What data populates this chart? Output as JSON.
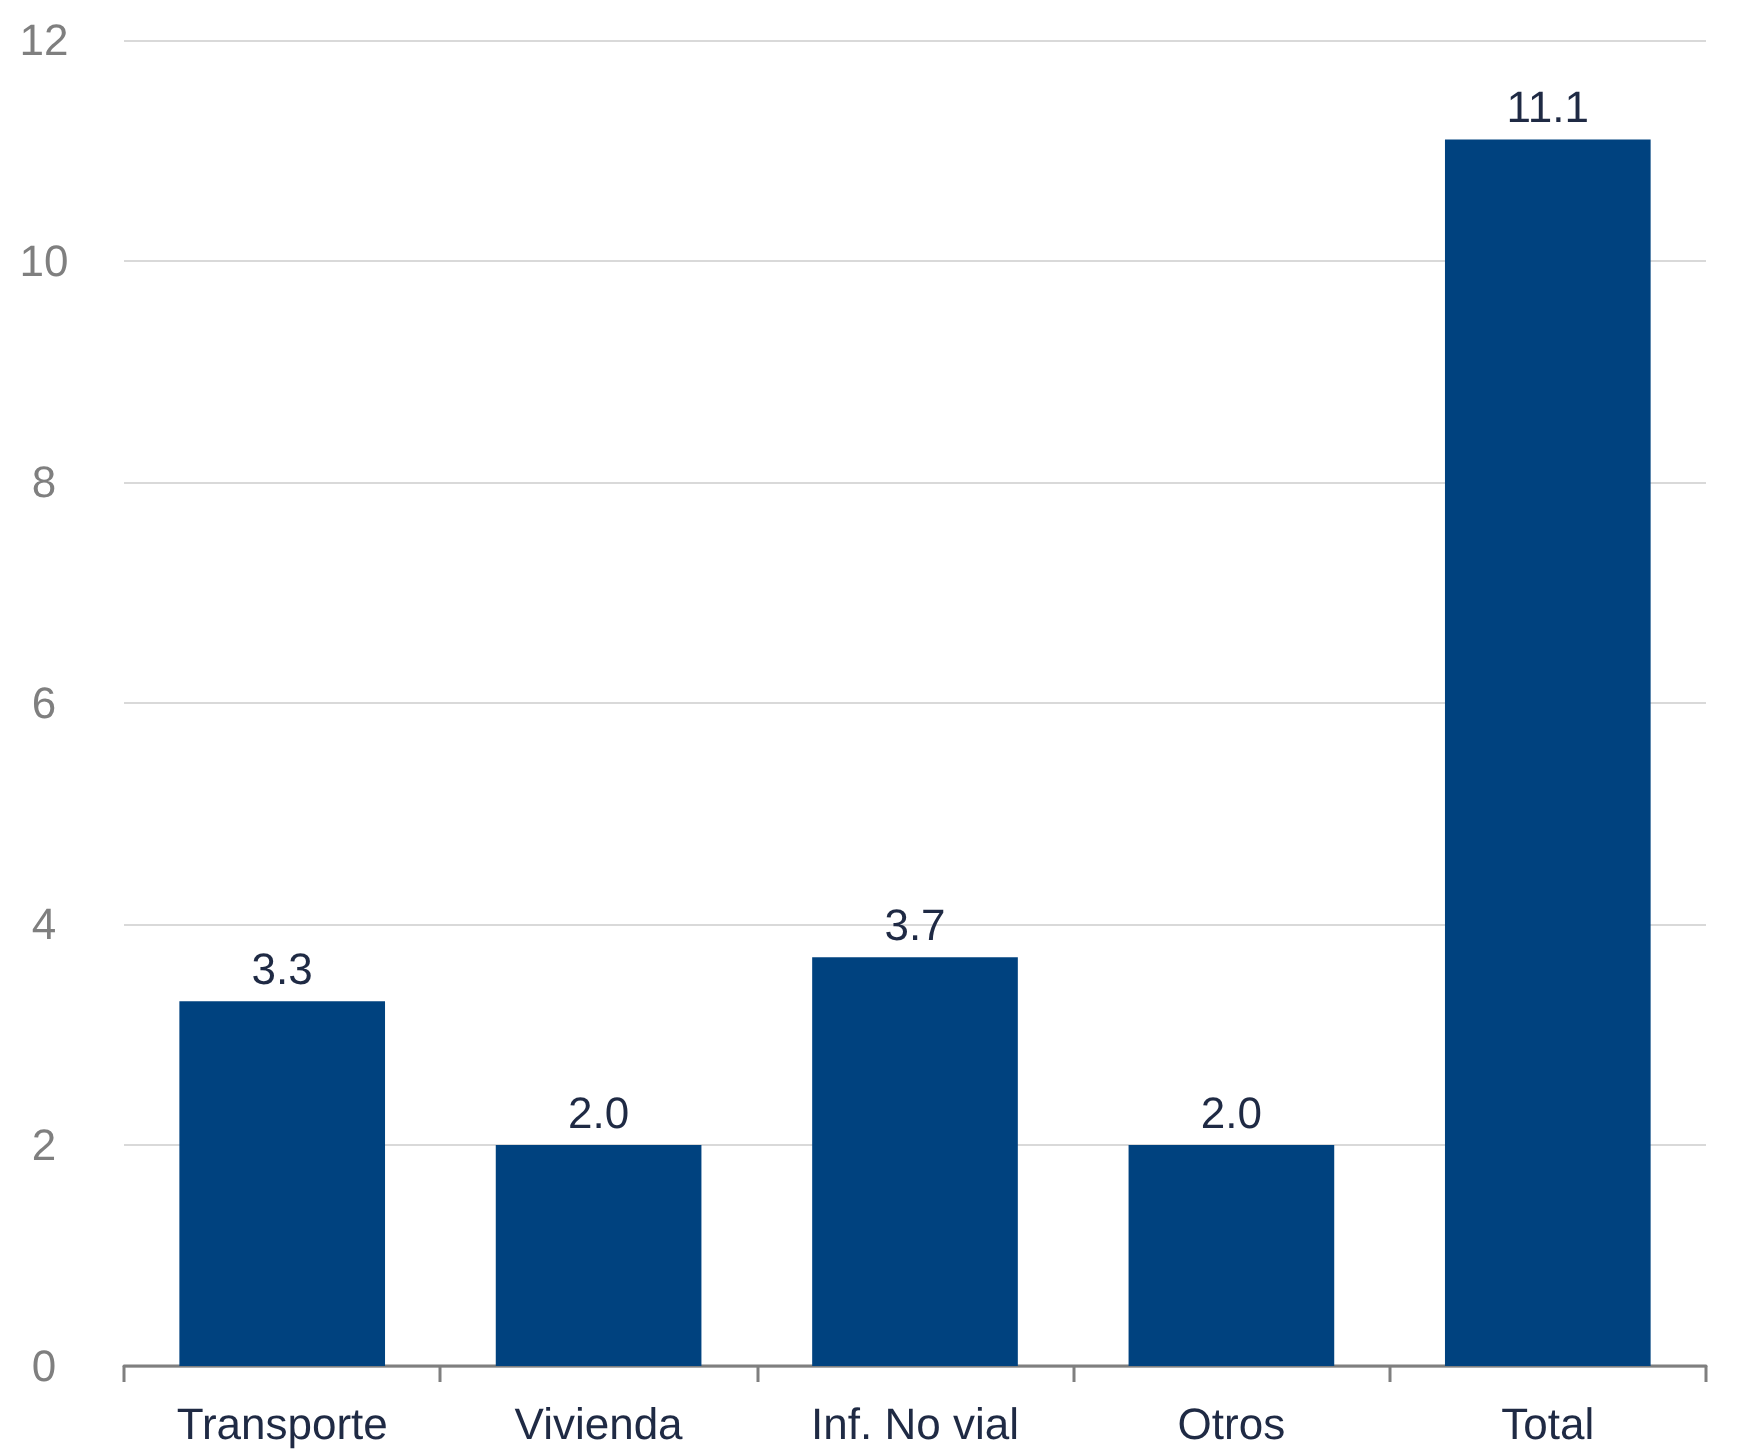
{
  "chart_data": {
    "type": "bar",
    "categories": [
      "Transporte",
      "Vivienda",
      "Inf. No vial",
      "Otros",
      "Total"
    ],
    "values": [
      3.3,
      2.0,
      3.7,
      2.0,
      11.1
    ],
    "value_labels": [
      "3.3",
      "2.0",
      "3.7",
      "2.0",
      "11.1"
    ],
    "color": "#00427f",
    "ylim": [
      0,
      12
    ],
    "yticks": [
      0,
      2,
      4,
      6,
      8,
      10,
      12
    ],
    "grid": "y"
  }
}
